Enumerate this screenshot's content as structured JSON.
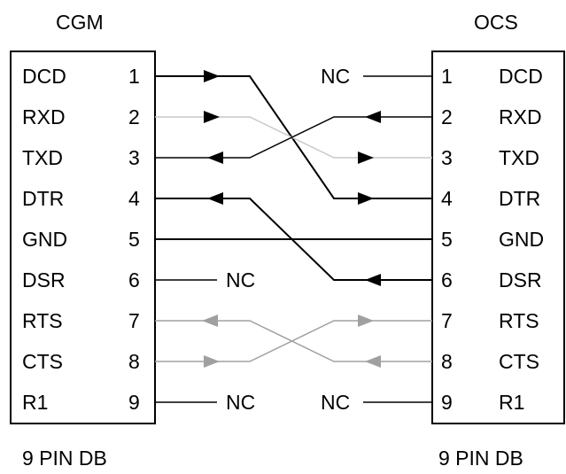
{
  "left": {
    "title": "CGM",
    "footer": "9 PIN DB",
    "pins": [
      {
        "num": "1",
        "name": "DCD"
      },
      {
        "num": "2",
        "name": "RXD"
      },
      {
        "num": "3",
        "name": "TXD"
      },
      {
        "num": "4",
        "name": "DTR"
      },
      {
        "num": "5",
        "name": "GND"
      },
      {
        "num": "6",
        "name": "DSR"
      },
      {
        "num": "7",
        "name": "RTS"
      },
      {
        "num": "8",
        "name": "CTS"
      },
      {
        "num": "9",
        "name": "R1"
      }
    ]
  },
  "right": {
    "title": "OCS",
    "footer": "9 PIN DB",
    "pins": [
      {
        "num": "1",
        "name": "DCD"
      },
      {
        "num": "2",
        "name": "RXD"
      },
      {
        "num": "3",
        "name": "TXD"
      },
      {
        "num": "4",
        "name": "DTR"
      },
      {
        "num": "5",
        "name": "GND"
      },
      {
        "num": "6",
        "name": "DSR"
      },
      {
        "num": "7",
        "name": "RTS"
      },
      {
        "num": "8",
        "name": "CTS"
      },
      {
        "num": "9",
        "name": "R1"
      }
    ]
  },
  "nc_labels": {
    "left_pin6": "NC",
    "left_pin9": "NC",
    "right_pin1": "NC",
    "right_pin9": "NC"
  },
  "connections": [
    {
      "from": "CGM DCD 1",
      "to": "OCS DTR 4",
      "color": "#000000"
    },
    {
      "from": "CGM RXD 2",
      "to": "OCS TXD 3",
      "color": "#c8c8c8"
    },
    {
      "from": "CGM TXD 3",
      "to": "OCS RXD 2",
      "color": "#000000"
    },
    {
      "from": "CGM DTR 4",
      "to": "OCS DSR 6",
      "color": "#000000"
    },
    {
      "from": "CGM GND 5",
      "to": "OCS GND 5",
      "color": "#000000"
    },
    {
      "from": "CGM RTS 7",
      "to": "OCS CTS 8",
      "color": "#a0a0a0"
    },
    {
      "from": "CGM CTS 8",
      "to": "OCS RTS 7",
      "color": "#a0a0a0"
    }
  ]
}
